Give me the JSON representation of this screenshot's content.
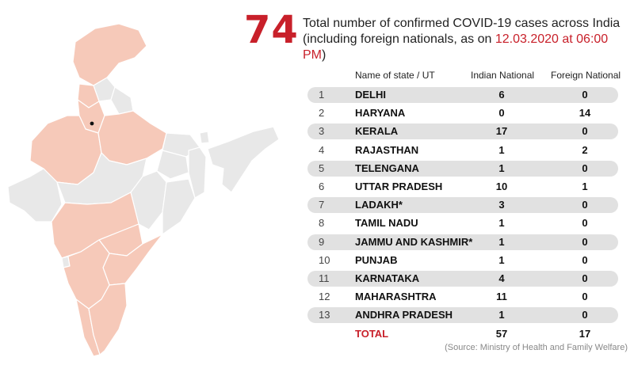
{
  "headline": {
    "count": "74",
    "line1": "Total number of confirmed COVID-19 cases across India",
    "line2_prefix": "(including foreign nationals, as on ",
    "date": "12.03.2020 at 06:00 PM",
    "line2_suffix": ")"
  },
  "table": {
    "headers": {
      "state": "Name of state / UT",
      "indian": "Indian National",
      "foreign": "Foreign National"
    },
    "rows": [
      {
        "num": "1",
        "state": "DELHI",
        "indian": "6",
        "foreign": "0"
      },
      {
        "num": "2",
        "state": "HARYANA",
        "indian": "0",
        "foreign": "14"
      },
      {
        "num": "3",
        "state": "KERALA",
        "indian": "17",
        "foreign": "0"
      },
      {
        "num": "4",
        "state": "RAJASTHAN",
        "indian": "1",
        "foreign": "2"
      },
      {
        "num": "5",
        "state": "TELENGANA",
        "indian": "1",
        "foreign": "0"
      },
      {
        "num": "6",
        "state": "UTTAR PRADESH",
        "indian": "10",
        "foreign": "1"
      },
      {
        "num": "7",
        "state": "LADAKH*",
        "indian": "3",
        "foreign": "0"
      },
      {
        "num": "8",
        "state": "TAMIL NADU",
        "indian": "1",
        "foreign": "0"
      },
      {
        "num": "9",
        "state": "JAMMU AND KASHMIR*",
        "indian": "1",
        "foreign": "0"
      },
      {
        "num": "10",
        "state": "PUNJAB",
        "indian": "1",
        "foreign": "0"
      },
      {
        "num": "11",
        "state": "KARNATAKA",
        "indian": "4",
        "foreign": "0"
      },
      {
        "num": "12",
        "state": "MAHARASHTRA",
        "indian": "11",
        "foreign": "0"
      },
      {
        "num": "13",
        "state": "ANDHRA PRADESH",
        "indian": "1",
        "foreign": "0"
      }
    ],
    "total": {
      "label": "TOTAL",
      "indian": "57",
      "foreign": "17"
    }
  },
  "source": "(Source: Ministry of Health and Family Welfare)",
  "colors": {
    "accent": "#c8202a",
    "affected": "#f6c9b9",
    "unaffected": "#e8e8e8",
    "row_shade": "#e1e1e1"
  }
}
